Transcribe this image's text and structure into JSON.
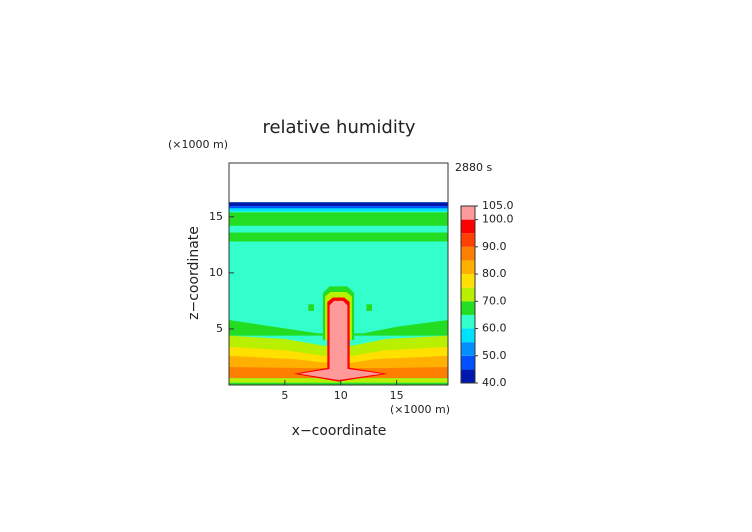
{
  "chart_data": {
    "type": "contour",
    "title": "relative humidity",
    "x_label": "x−coordinate",
    "y_label": "z−coordinate",
    "x_unit": "(×1000 m)",
    "y_unit": "(×1000 m)",
    "time_label": "2880 s",
    "xlim": [
      0,
      19.6
    ],
    "ylim": [
      0,
      19.8
    ],
    "xticks": [
      5,
      10,
      15
    ],
    "yticks": [
      5,
      10,
      15
    ],
    "colorbar": {
      "levels": [
        40,
        45,
        50,
        55,
        60,
        65,
        70,
        75,
        80,
        85,
        90,
        95,
        100,
        105
      ],
      "colors": [
        "#0018b0",
        "#0050ff",
        "#0090ff",
        "#00e0ff",
        "#33ffcc",
        "#22dd22",
        "#b8f000",
        "#ffe000",
        "#ffb000",
        "#ff8000",
        "#ff4000",
        "#ff0000",
        "#ff9a9a"
      ],
      "ticks": [
        {
          "value": 40,
          "label": "40.0"
        },
        {
          "value": 50,
          "label": "50.0"
        },
        {
          "value": 60,
          "label": "60.0"
        },
        {
          "value": 70,
          "label": "70.0"
        },
        {
          "value": 80,
          "label": "80.0"
        },
        {
          "value": 90,
          "label": "90.0"
        },
        {
          "value": 100,
          "label": "100.0"
        },
        {
          "value": 105,
          "label": "105.0"
        }
      ]
    }
  }
}
